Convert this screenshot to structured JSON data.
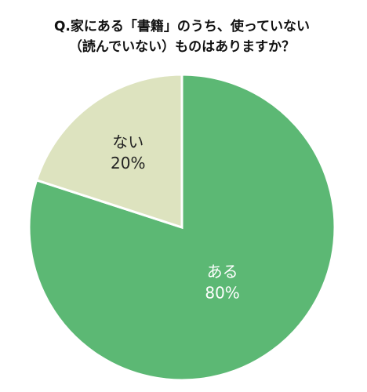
{
  "chart_data": {
    "type": "pie",
    "title": [
      "Q.家にある「書籍」のうち、使っていない",
      "（読んでいない）ものはありますか？"
    ],
    "categories": [
      "ある",
      "ない"
    ],
    "values": [
      80,
      20
    ],
    "value_labels": [
      "80%",
      "20%"
    ],
    "colors": [
      "#5cb874",
      "#dde3bf"
    ],
    "label_colors": [
      "#ffffff",
      "#222222"
    ]
  }
}
